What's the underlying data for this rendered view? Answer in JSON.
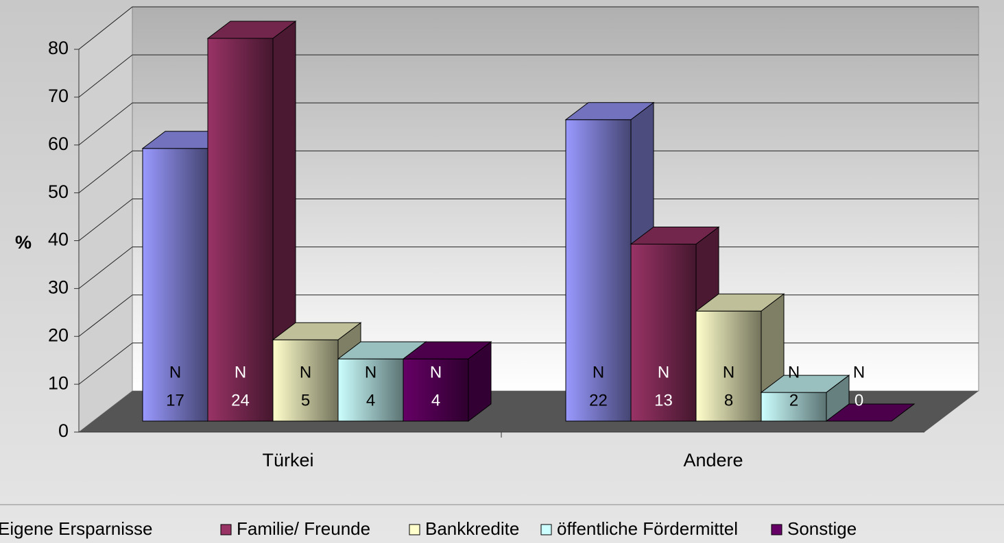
{
  "chart_data": {
    "type": "bar3d",
    "y_label": "%",
    "categories": [
      "Türkei",
      "Andere"
    ],
    "count_label": "N",
    "series": [
      {
        "name": "Eigene Ersparnisse",
        "color": "#9999ff",
        "values": [
          57,
          63
        ],
        "counts": [
          17,
          22
        ]
      },
      {
        "name": "Familie/ Freunde",
        "color": "#993366",
        "values": [
          80,
          37
        ],
        "counts": [
          24,
          13
        ]
      },
      {
        "name": "Bankkredite",
        "color": "#ffffcc",
        "values": [
          17,
          23
        ],
        "counts": [
          5,
          8
        ]
      },
      {
        "name": "öffentliche Fördermittel",
        "color": "#ccffff",
        "values": [
          13,
          6
        ],
        "counts": [
          4,
          2
        ]
      },
      {
        "name": "Sonstige",
        "color": "#660066",
        "values": [
          13,
          0
        ],
        "counts": [
          4,
          0
        ]
      }
    ],
    "ylim": [
      0,
      80
    ],
    "yticks": [
      0,
      10,
      20,
      30,
      40,
      50,
      60,
      70,
      80
    ],
    "grid": true
  }
}
